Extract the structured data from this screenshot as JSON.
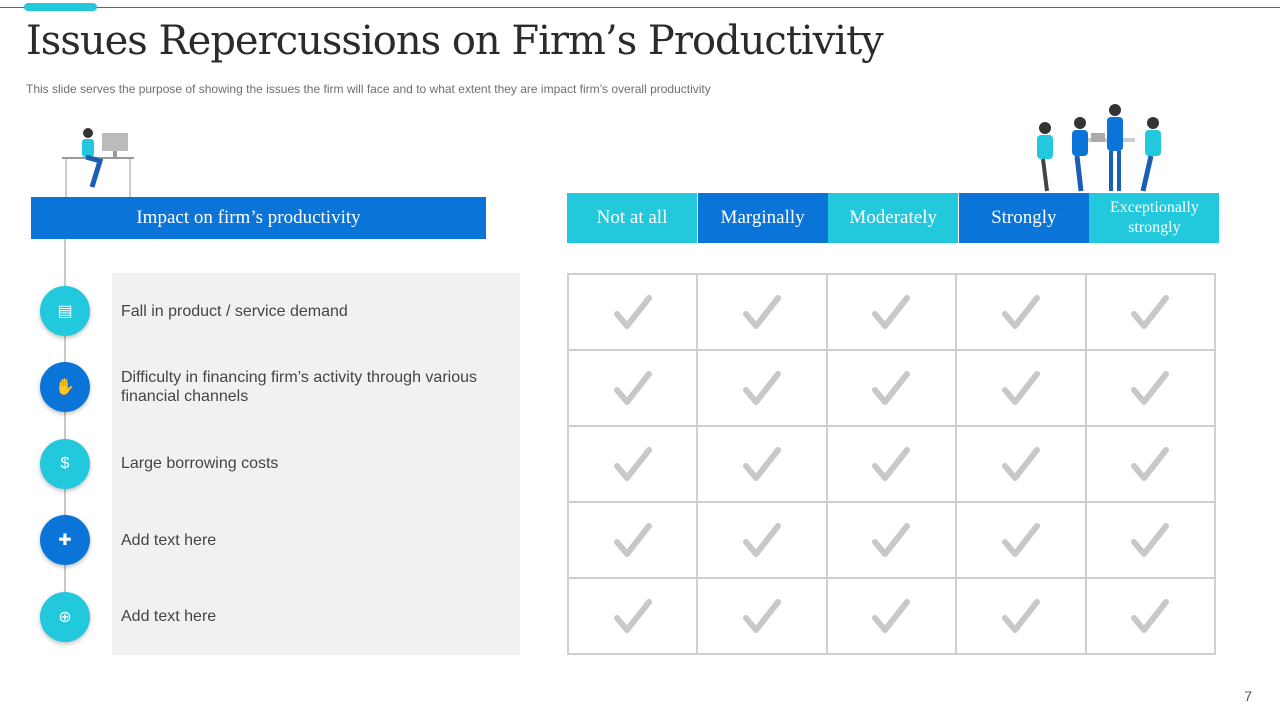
{
  "title": "Issues Repercussions on Firm’s Productivity",
  "subtitle": "This slide serves the purpose of showing the issues the firm will face and to what extent they are impact firm’s overall  productivity",
  "left_header": "Impact on firm’s productivity",
  "issues": [
    {
      "label": "Fall in product / service demand",
      "icon": "demand-chart-icon",
      "color": "#22c8dc"
    },
    {
      "label": "Difficulty in financing firm’s activity through various financial channels",
      "icon": "hands-money-icon",
      "color": "#0a74d8"
    },
    {
      "label": "Large borrowing costs",
      "icon": "money-bag-hand-icon",
      "color": "#22c8dc"
    },
    {
      "label": "Add text here",
      "icon": "document-add-icon",
      "color": "#0a74d8"
    },
    {
      "label": "Add text here",
      "icon": "file-plus-icon",
      "color": "#22c8dc"
    }
  ],
  "scale": [
    {
      "label": "Not at all",
      "color": "#22c8dc"
    },
    {
      "label": "Marginally",
      "color": "#0a74d8"
    },
    {
      "label": "Moderately",
      "color": "#22c8dc"
    },
    {
      "label": "Strongly",
      "color": "#0a74d8"
    },
    {
      "label": "Exceptionally strongly",
      "color": "#22c8dc"
    }
  ],
  "check_color": "#c8c8c8",
  "page_number": "7"
}
